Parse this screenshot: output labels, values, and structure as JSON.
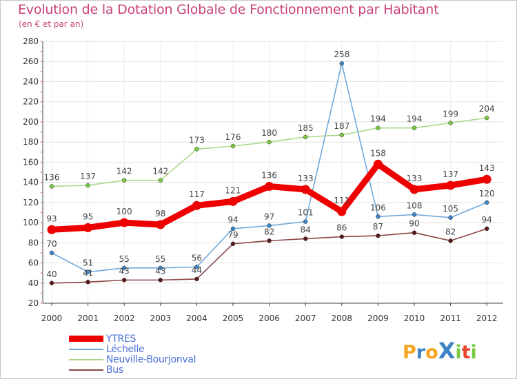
{
  "chart_data": {
    "type": "line",
    "title": "Evolution de la Dotation Globale de Fonctionnement par Habitant",
    "subtitle": "(en € et par an)",
    "xlabel": "",
    "ylabel": "",
    "categories": [
      "2000",
      "2001",
      "2002",
      "2003",
      "2004",
      "2005",
      "2006",
      "2007",
      "2008",
      "2009",
      "2010",
      "2011",
      "2012"
    ],
    "ylim": [
      20,
      280
    ],
    "yticks": [
      "20",
      "40",
      "60",
      "80",
      "100",
      "120",
      "140",
      "160",
      "180",
      "200",
      "220",
      "240",
      "260",
      "280"
    ],
    "grid": true,
    "legend_position": "bottom-left",
    "series": [
      {
        "name": "YTRES",
        "color": "#ee0000",
        "marker": "#ee0000",
        "values": [
          93,
          95,
          100,
          98,
          117,
          121,
          136,
          133,
          111,
          158,
          133,
          137,
          143
        ],
        "labels": [
          "93",
          "95",
          "100",
          "98",
          "117",
          "121",
          "136",
          "133",
          "111",
          "158",
          "133",
          "137",
          "143"
        ]
      },
      {
        "name": "Léchelle",
        "color": "#6fa8dc",
        "marker": "#3d85c6",
        "values": [
          70,
          51,
          55,
          55,
          56,
          94,
          97,
          101,
          258,
          106,
          108,
          105,
          120
        ],
        "labels": [
          "70",
          "51",
          "55",
          "55",
          "56",
          "94",
          "97",
          "101",
          "258",
          "106",
          "108",
          "105",
          "120"
        ]
      },
      {
        "name": "Neuville-Bourjonval",
        "color": "#a8d889",
        "marker": "#7ac943",
        "values": [
          136,
          137,
          142,
          142,
          173,
          176,
          180,
          185,
          187,
          194,
          194,
          199,
          204
        ],
        "labels": [
          "136",
          "137",
          "142",
          "142",
          "173",
          "176",
          "180",
          "185",
          "187",
          "194",
          "194",
          "199",
          "204"
        ]
      },
      {
        "name": "Bus",
        "color": "#8b4545",
        "marker": "#5a1a1a",
        "values": [
          40,
          41,
          43,
          43,
          44,
          79,
          82,
          84,
          86,
          87,
          90,
          82,
          94
        ],
        "labels": [
          "40",
          "41",
          "43",
          "43",
          "44",
          "79",
          "82",
          "84",
          "86",
          "87",
          "90",
          "82",
          "94"
        ]
      }
    ]
  },
  "legend": {
    "items": [
      {
        "label": "YTRES",
        "color": "#ee0000"
      },
      {
        "label": "Léchelle",
        "color": "#6fa8dc"
      },
      {
        "label": "Neuville-Bourjonval",
        "color": "#a8d889"
      },
      {
        "label": "Bus",
        "color": "#8b4545"
      }
    ]
  },
  "logo": {
    "text": "ProXiti",
    "letters": [
      "P",
      "r",
      "o",
      "X",
      "i",
      "t",
      "i"
    ],
    "colors": [
      "#f4a31c",
      "#3d85c6",
      "#f4a31c",
      "#3d85c6",
      "#7ac943",
      "#e8452c",
      "#7ac943"
    ]
  }
}
